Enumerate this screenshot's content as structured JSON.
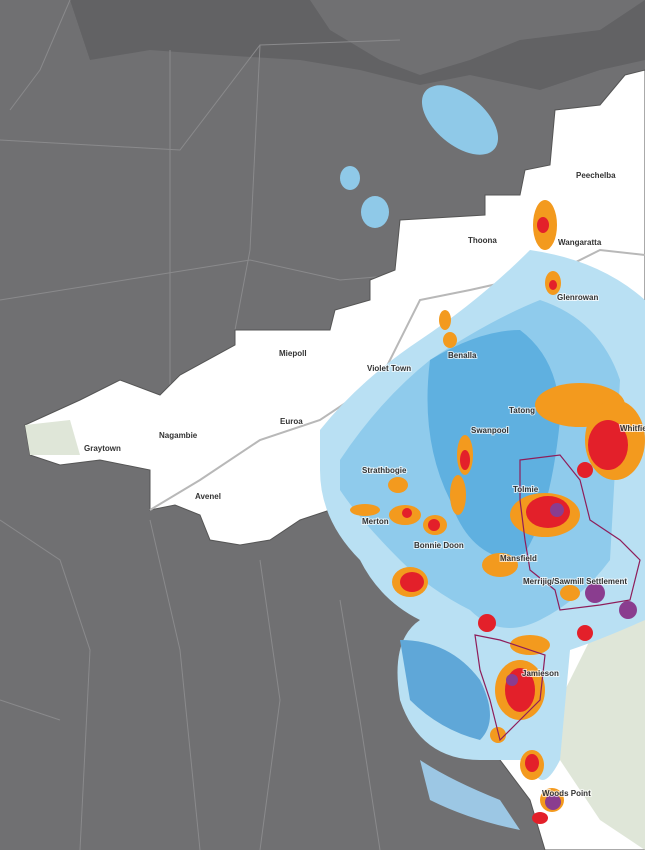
{
  "places": [
    "Peechelba",
    "Thoona",
    "Wangaratta",
    "Glenrowan",
    "Benalla",
    "Miepoll",
    "Violet Town",
    "Tatong",
    "Euroa",
    "Nagambie",
    "Swanpool",
    "Whitfield",
    "Graytown",
    "Strathbogie",
    "Tolmie",
    "Avenel",
    "Merton",
    "Bonnie Doon",
    "Mansfield",
    "Merrijig/Sawmill Settlement",
    "Jamieson",
    "Woods Point"
  ]
}
